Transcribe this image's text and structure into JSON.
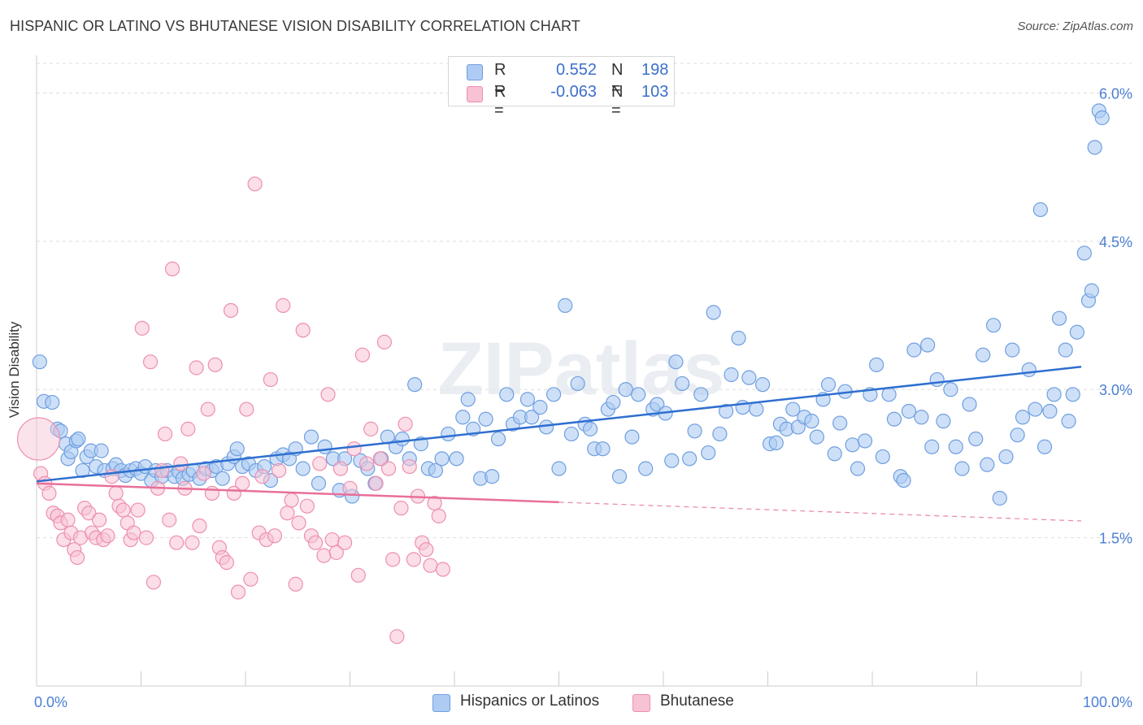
{
  "title": "HISPANIC OR LATINO VS BHUTANESE VISION DISABILITY CORRELATION CHART",
  "source": "Source: ZipAtlas.com",
  "watermark": "ZIPatlas",
  "legend": {
    "rows": [
      {
        "r_label": "R =",
        "r_value": "0.552",
        "n_label": "N =",
        "n_value": "198"
      },
      {
        "r_label": "R =",
        "r_value": "-0.063",
        "n_label": "N =",
        "n_value": "103"
      }
    ]
  },
  "bottom_legend": [
    "Hispanics or Latinos",
    "Bhutanese"
  ],
  "colors": {
    "blue_fill": "#aecbf3",
    "blue_stroke": "#6f9fdf",
    "blue_line": "#2f6fd0",
    "pink_fill": "#f7c2d4",
    "pink_stroke": "#ee8fb0",
    "pink_line": "#e8709a",
    "tick_label": "#4a7fd4",
    "grid": "#dddddd"
  },
  "chart_data": {
    "type": "scatter",
    "title": "HISPANIC OR LATINO VS BHUTANESE VISION DISABILITY CORRELATION CHART",
    "xlabel": "",
    "ylabel": "Vision Disability",
    "xlim": [
      0,
      100
    ],
    "ylim": [
      0,
      6.3
    ],
    "x_tick_labels": [
      "0.0%",
      "100.0%"
    ],
    "y_ticks": [
      1.5,
      3.0,
      4.5,
      6.0
    ],
    "y_tick_labels": [
      "1.5%",
      "3.0%",
      "4.5%",
      "6.0%"
    ],
    "grid": true,
    "legend_position": "top-center",
    "series": [
      {
        "name": "Hispanics or Latinos",
        "r": 0.552,
        "n": 198,
        "trend": {
          "x": [
            0,
            100
          ],
          "y": [
            2.07,
            3.23
          ],
          "dashed_from": null
        },
        "points": [
          [
            0.3,
            3.28
          ],
          [
            0.7,
            2.88
          ],
          [
            1.5,
            2.87
          ],
          [
            2,
            2.6
          ],
          [
            2.3,
            2.58
          ],
          [
            2.8,
            2.45
          ],
          [
            3,
            2.3
          ],
          [
            3.3,
            2.37
          ],
          [
            3.8,
            2.48
          ],
          [
            4,
            2.5
          ],
          [
            4.4,
            2.18
          ],
          [
            4.8,
            2.32
          ],
          [
            5.2,
            2.38
          ],
          [
            5.7,
            2.22
          ],
          [
            6.2,
            2.38
          ],
          [
            6.5,
            2.18
          ],
          [
            7.3,
            2.2
          ],
          [
            7.6,
            2.24
          ],
          [
            8.1,
            2.18
          ],
          [
            8.5,
            2.13
          ],
          [
            9,
            2.18
          ],
          [
            9.5,
            2.2
          ],
          [
            10,
            2.15
          ],
          [
            10.4,
            2.22
          ],
          [
            11,
            2.08
          ],
          [
            11.4,
            2.18
          ],
          [
            12,
            2.12
          ],
          [
            12.5,
            2.18
          ],
          [
            13.2,
            2.12
          ],
          [
            13.6,
            2.17
          ],
          [
            14,
            2.1
          ],
          [
            14.6,
            2.14
          ],
          [
            15,
            2.18
          ],
          [
            15.6,
            2.1
          ],
          [
            16.2,
            2.2
          ],
          [
            16.8,
            2.18
          ],
          [
            17.2,
            2.22
          ],
          [
            17.8,
            2.1
          ],
          [
            18.3,
            2.25
          ],
          [
            18.9,
            2.32
          ],
          [
            19.2,
            2.4
          ],
          [
            19.7,
            2.22
          ],
          [
            20.3,
            2.25
          ],
          [
            21,
            2.18
          ],
          [
            21.8,
            2.22
          ],
          [
            22.4,
            2.08
          ],
          [
            23,
            2.3
          ],
          [
            23.6,
            2.34
          ],
          [
            24.2,
            2.3
          ],
          [
            24.8,
            2.4
          ],
          [
            25.5,
            2.2
          ],
          [
            26.3,
            2.52
          ],
          [
            27,
            2.05
          ],
          [
            27.6,
            2.42
          ],
          [
            28.4,
            2.3
          ],
          [
            29,
            1.98
          ],
          [
            29.5,
            2.3
          ],
          [
            30.2,
            1.92
          ],
          [
            31,
            2.28
          ],
          [
            31.7,
            2.2
          ],
          [
            32.4,
            2.05
          ],
          [
            33,
            2.3
          ],
          [
            33.6,
            2.52
          ],
          [
            34.4,
            2.42
          ],
          [
            35,
            2.5
          ],
          [
            35.7,
            2.3
          ],
          [
            36.2,
            3.05
          ],
          [
            36.8,
            2.45
          ],
          [
            37.5,
            2.2
          ],
          [
            38.2,
            2.18
          ],
          [
            38.8,
            2.3
          ],
          [
            39.4,
            2.55
          ],
          [
            40.2,
            2.3
          ],
          [
            40.8,
            2.72
          ],
          [
            41.3,
            2.9
          ],
          [
            41.8,
            2.6
          ],
          [
            42.5,
            2.1
          ],
          [
            43,
            2.7
          ],
          [
            43.6,
            2.12
          ],
          [
            44.2,
            2.5
          ],
          [
            45,
            2.95
          ],
          [
            45.6,
            2.65
          ],
          [
            46.3,
            2.72
          ],
          [
            47,
            2.9
          ],
          [
            47.4,
            2.72
          ],
          [
            48.2,
            2.82
          ],
          [
            48.8,
            2.62
          ],
          [
            49.5,
            2.95
          ],
          [
            50,
            2.2
          ],
          [
            50.6,
            3.85
          ],
          [
            51.2,
            2.55
          ],
          [
            51.8,
            3.06
          ],
          [
            52.5,
            2.65
          ],
          [
            53,
            2.6
          ],
          [
            53.4,
            2.4
          ],
          [
            54.2,
            2.4
          ],
          [
            54.7,
            2.8
          ],
          [
            55.2,
            2.87
          ],
          [
            55.8,
            2.12
          ],
          [
            56.4,
            3.0
          ],
          [
            57,
            2.52
          ],
          [
            57.6,
            2.95
          ],
          [
            58.3,
            2.2
          ],
          [
            59,
            2.8
          ],
          [
            59.4,
            2.85
          ],
          [
            60.2,
            2.76
          ],
          [
            60.8,
            2.28
          ],
          [
            61.2,
            3.28
          ],
          [
            61.8,
            3.06
          ],
          [
            62.5,
            2.3
          ],
          [
            63,
            2.58
          ],
          [
            63.6,
            2.95
          ],
          [
            64.3,
            2.36
          ],
          [
            64.8,
            3.78
          ],
          [
            65.4,
            2.55
          ],
          [
            66,
            2.78
          ],
          [
            66.5,
            3.15
          ],
          [
            67.2,
            3.52
          ],
          [
            67.6,
            2.82
          ],
          [
            68.2,
            3.12
          ],
          [
            68.9,
            2.8
          ],
          [
            69.5,
            3.05
          ],
          [
            70.2,
            2.45
          ],
          [
            70.8,
            2.46
          ],
          [
            71.2,
            2.65
          ],
          [
            71.8,
            2.6
          ],
          [
            72.4,
            2.8
          ],
          [
            72.9,
            2.62
          ],
          [
            73.5,
            2.72
          ],
          [
            74.2,
            2.68
          ],
          [
            74.7,
            2.52
          ],
          [
            75.3,
            2.9
          ],
          [
            75.8,
            3.05
          ],
          [
            76.4,
            2.35
          ],
          [
            76.9,
            2.66
          ],
          [
            77.4,
            2.98
          ],
          [
            78.1,
            2.44
          ],
          [
            78.6,
            2.2
          ],
          [
            79.3,
            2.48
          ],
          [
            79.8,
            2.95
          ],
          [
            80.4,
            3.25
          ],
          [
            81,
            2.32
          ],
          [
            81.6,
            2.95
          ],
          [
            82.1,
            2.7
          ],
          [
            82.7,
            2.12
          ],
          [
            83,
            2.08
          ],
          [
            83.5,
            2.78
          ],
          [
            84,
            3.4
          ],
          [
            84.7,
            2.72
          ],
          [
            85.3,
            3.45
          ],
          [
            85.7,
            2.42
          ],
          [
            86.2,
            3.1
          ],
          [
            86.8,
            2.68
          ],
          [
            87.5,
            3.0
          ],
          [
            88,
            2.42
          ],
          [
            88.6,
            2.2
          ],
          [
            89.3,
            2.85
          ],
          [
            89.9,
            2.5
          ],
          [
            90.6,
            3.35
          ],
          [
            91,
            2.24
          ],
          [
            91.6,
            3.65
          ],
          [
            92.2,
            1.9
          ],
          [
            92.8,
            2.32
          ],
          [
            93.4,
            3.4
          ],
          [
            93.9,
            2.54
          ],
          [
            94.4,
            2.72
          ],
          [
            95,
            3.2
          ],
          [
            95.6,
            2.8
          ],
          [
            96.1,
            4.82
          ],
          [
            96.5,
            2.42
          ],
          [
            97,
            2.78
          ],
          [
            97.4,
            2.95
          ],
          [
            97.9,
            3.72
          ],
          [
            98.5,
            3.4
          ],
          [
            98.8,
            2.68
          ],
          [
            99.2,
            2.95
          ],
          [
            99.6,
            3.58
          ],
          [
            100.3,
            4.38
          ],
          [
            100.7,
            3.9
          ],
          [
            101,
            4.0
          ],
          [
            101.3,
            5.45
          ],
          [
            101.7,
            5.82
          ],
          [
            102,
            5.75
          ]
        ]
      },
      {
        "name": "Bhutanese",
        "r": -0.063,
        "n": 103,
        "trend": {
          "x": [
            0,
            100
          ],
          "y": [
            2.05,
            1.67
          ],
          "dashed_from": 50
        },
        "points": [
          [
            0.2,
            2.5
          ],
          [
            0.4,
            2.15
          ],
          [
            0.8,
            2.05
          ],
          [
            1.2,
            1.95
          ],
          [
            1.6,
            1.75
          ],
          [
            2,
            1.72
          ],
          [
            2.3,
            1.65
          ],
          [
            2.6,
            1.48
          ],
          [
            3,
            1.68
          ],
          [
            3.3,
            1.55
          ],
          [
            3.6,
            1.38
          ],
          [
            3.9,
            1.3
          ],
          [
            4.2,
            1.5
          ],
          [
            4.6,
            1.8
          ],
          [
            5,
            1.75
          ],
          [
            5.3,
            1.55
          ],
          [
            5.7,
            1.5
          ],
          [
            6,
            1.68
          ],
          [
            6.4,
            1.48
          ],
          [
            6.8,
            1.52
          ],
          [
            7.2,
            2.12
          ],
          [
            7.6,
            1.95
          ],
          [
            7.9,
            1.82
          ],
          [
            8.3,
            1.78
          ],
          [
            8.7,
            1.65
          ],
          [
            9,
            1.48
          ],
          [
            9.3,
            1.55
          ],
          [
            9.7,
            1.78
          ],
          [
            10.1,
            3.62
          ],
          [
            10.5,
            1.5
          ],
          [
            10.9,
            3.28
          ],
          [
            11.2,
            1.05
          ],
          [
            11.6,
            2.0
          ],
          [
            12,
            2.18
          ],
          [
            12.3,
            2.55
          ],
          [
            12.7,
            1.68
          ],
          [
            13,
            4.22
          ],
          [
            13.4,
            1.45
          ],
          [
            13.8,
            2.25
          ],
          [
            14.2,
            2.0
          ],
          [
            14.5,
            2.6
          ],
          [
            14.9,
            1.45
          ],
          [
            15.3,
            3.22
          ],
          [
            15.6,
            1.62
          ],
          [
            16,
            2.15
          ],
          [
            16.4,
            2.8
          ],
          [
            16.8,
            1.95
          ],
          [
            17.1,
            3.25
          ],
          [
            17.5,
            1.4
          ],
          [
            17.8,
            1.3
          ],
          [
            18.2,
            1.25
          ],
          [
            18.6,
            3.8
          ],
          [
            18.9,
            1.95
          ],
          [
            19.3,
            0.95
          ],
          [
            19.7,
            2.05
          ],
          [
            20.1,
            2.8
          ],
          [
            20.5,
            1.08
          ],
          [
            20.9,
            5.08
          ],
          [
            21.3,
            1.55
          ],
          [
            21.6,
            2.12
          ],
          [
            22,
            1.48
          ],
          [
            22.4,
            3.1
          ],
          [
            22.8,
            1.52
          ],
          [
            23.2,
            2.18
          ],
          [
            23.6,
            3.85
          ],
          [
            24,
            1.75
          ],
          [
            24.4,
            1.88
          ],
          [
            24.8,
            1.03
          ],
          [
            25.1,
            1.65
          ],
          [
            25.5,
            3.6
          ],
          [
            25.9,
            1.82
          ],
          [
            26.3,
            1.52
          ],
          [
            26.7,
            1.45
          ],
          [
            27.1,
            2.25
          ],
          [
            27.5,
            1.32
          ],
          [
            27.9,
            2.95
          ],
          [
            28.3,
            1.48
          ],
          [
            28.7,
            1.35
          ],
          [
            29.1,
            2.2
          ],
          [
            29.5,
            1.45
          ],
          [
            30,
            2.0
          ],
          [
            30.4,
            2.4
          ],
          [
            30.8,
            1.12
          ],
          [
            31.2,
            3.35
          ],
          [
            31.6,
            2.25
          ],
          [
            32,
            2.6
          ],
          [
            32.5,
            2.05
          ],
          [
            32.9,
            2.3
          ],
          [
            33.3,
            3.48
          ],
          [
            33.7,
            2.2
          ],
          [
            34.1,
            1.28
          ],
          [
            34.5,
            0.5
          ],
          [
            34.9,
            1.8
          ],
          [
            35.3,
            2.65
          ],
          [
            35.7,
            2.22
          ],
          [
            36.1,
            1.28
          ],
          [
            36.5,
            1.92
          ],
          [
            36.9,
            1.45
          ],
          [
            37.3,
            1.38
          ],
          [
            37.7,
            1.22
          ],
          [
            38.1,
            1.85
          ],
          [
            38.5,
            1.72
          ],
          [
            38.9,
            1.18
          ]
        ]
      }
    ]
  }
}
